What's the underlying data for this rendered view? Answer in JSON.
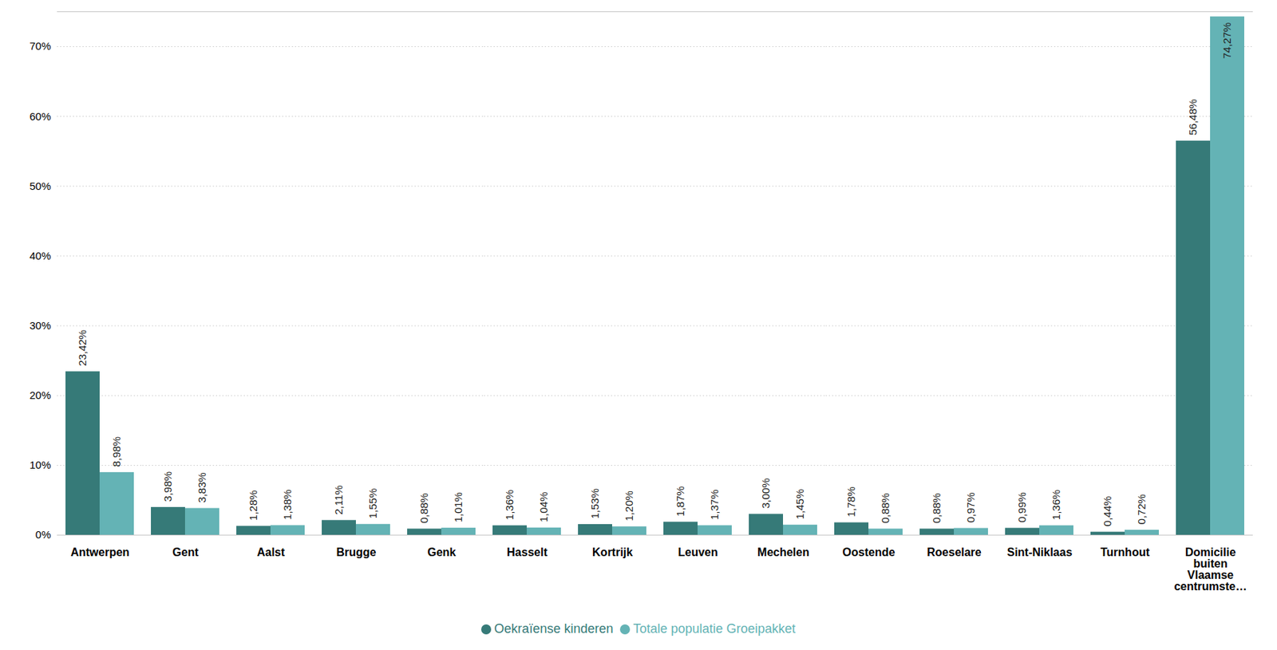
{
  "chart_data": {
    "type": "bar",
    "categories": [
      "Antwerpen",
      "Gent",
      "Aalst",
      "Brugge",
      "Genk",
      "Hasselt",
      "Kortrijk",
      "Leuven",
      "Mechelen",
      "Oostende",
      "Roeselare",
      "Sint-Niklaas",
      "Turnhout",
      "Domicilie buiten Vlaamse centrumste…"
    ],
    "series": [
      {
        "name": "Oekraïense kinderen",
        "color": "#367a78",
        "values": [
          23.42,
          3.98,
          1.28,
          2.11,
          0.88,
          1.36,
          1.53,
          1.87,
          3.0,
          1.78,
          0.88,
          0.99,
          0.44,
          56.48
        ],
        "value_labels": [
          "23,42%",
          "3,98%",
          "1,28%",
          "2,11%",
          "0,88%",
          "1,36%",
          "1,53%",
          "1,87%",
          "3,00%",
          "1,78%",
          "0,88%",
          "0,99%",
          "0,44%",
          "56,48%"
        ]
      },
      {
        "name": "Totale populatie Groeipakket",
        "color": "#64b3b5",
        "values": [
          8.98,
          3.83,
          1.38,
          1.55,
          1.01,
          1.04,
          1.2,
          1.37,
          1.45,
          0.88,
          0.97,
          1.36,
          0.72,
          74.27
        ],
        "value_labels": [
          "8,98%",
          "3,83%",
          "1,38%",
          "1,55%",
          "1,01%",
          "1,04%",
          "1,20%",
          "1,37%",
          "1,45%",
          "0,88%",
          "0,97%",
          "1,36%",
          "0,72%",
          "74,27%"
        ]
      }
    ],
    "ylim": [
      0,
      75
    ],
    "yticks": [
      {
        "value": 0,
        "label": "0%"
      },
      {
        "value": 10,
        "label": "10%"
      },
      {
        "value": 20,
        "label": "20%"
      },
      {
        "value": 30,
        "label": "30%"
      },
      {
        "value": 40,
        "label": "40%"
      },
      {
        "value": 50,
        "label": "50%"
      },
      {
        "value": 60,
        "label": "60%"
      },
      {
        "value": 70,
        "label": "70%"
      }
    ],
    "grid": true,
    "data_labels": true,
    "legend": "bottom"
  }
}
